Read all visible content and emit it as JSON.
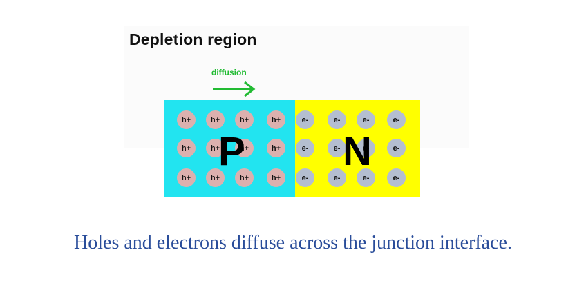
{
  "diagram": {
    "title": "Depletion region",
    "diffusion_label": "diffusion",
    "colors": {
      "p_region": "#22e4f0",
      "n_region": "#ffff00",
      "hole": "#dcb0ae",
      "electron": "#b4bed0",
      "arrow": "#22bb33",
      "caption": "#2a4d9a"
    },
    "p_region": {
      "letter": "P",
      "carrier_label": "h+",
      "rows": 3,
      "cols": 4
    },
    "n_region": {
      "letter": "N",
      "carrier_label": "e-",
      "rows": 3,
      "cols": 4
    }
  },
  "caption": "Holes and electrons diffuse across the junction interface."
}
